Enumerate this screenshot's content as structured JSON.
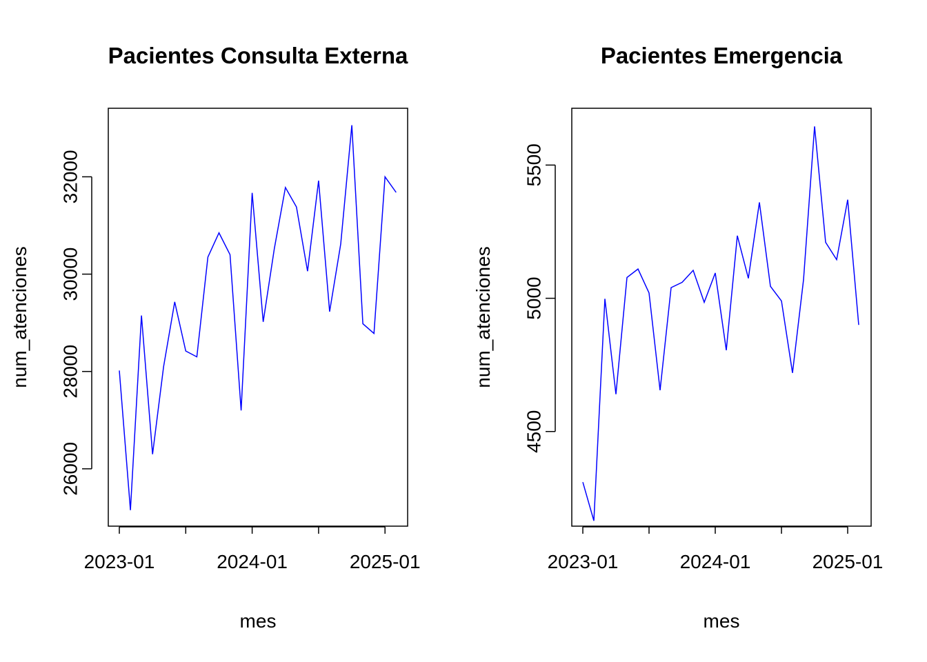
{
  "chart_data": [
    {
      "type": "line",
      "title": "Pacientes Consulta Externa",
      "xlabel": "mes",
      "ylabel": "num_atenciones",
      "line_color": "#0000ff",
      "x_ticks": [
        {
          "index": 0,
          "label": "2023-01"
        },
        {
          "index": 6,
          "label": ""
        },
        {
          "index": 12,
          "label": "2024-01"
        },
        {
          "index": 18,
          "label": ""
        },
        {
          "index": 24,
          "label": "2025-01"
        }
      ],
      "y_ticks": [
        {
          "value": 26000,
          "label": "26000"
        },
        {
          "value": 28000,
          "label": "28000"
        },
        {
          "value": 30000,
          "label": "30000"
        },
        {
          "value": 32000,
          "label": "32000"
        }
      ],
      "ylim": [
        24850,
        33380
      ],
      "months": [
        "2023-01",
        "2023-02",
        "2023-03",
        "2023-04",
        "2023-05",
        "2023-06",
        "2023-07",
        "2023-08",
        "2023-09",
        "2023-10",
        "2023-11",
        "2023-12",
        "2024-01",
        "2024-02",
        "2024-03",
        "2024-04",
        "2024-05",
        "2024-06",
        "2024-07",
        "2024-08",
        "2024-09",
        "2024-10",
        "2024-11",
        "2024-12",
        "2025-01",
        "2025-02"
      ],
      "values": [
        28020,
        25150,
        29150,
        26300,
        28100,
        29430,
        28420,
        28300,
        30350,
        30850,
        30400,
        27200,
        31670,
        29020,
        30520,
        31780,
        31380,
        30060,
        31920,
        29230,
        30620,
        33060,
        28980,
        28780,
        32000,
        31680
      ]
    },
    {
      "type": "line",
      "title": "Pacientes Emergencia",
      "xlabel": "mes",
      "ylabel": "num_atenciones",
      "line_color": "#0000ff",
      "x_ticks": [
        {
          "index": 0,
          "label": "2023-01"
        },
        {
          "index": 6,
          "label": ""
        },
        {
          "index": 12,
          "label": "2024-01"
        },
        {
          "index": 18,
          "label": ""
        },
        {
          "index": 24,
          "label": "2025-01"
        }
      ],
      "y_ticks": [
        {
          "value": 4500,
          "label": "4500"
        },
        {
          "value": 5000,
          "label": "5000"
        },
        {
          "value": 5500,
          "label": "5500"
        }
      ],
      "ylim": [
        4150,
        5708
      ],
      "months": [
        "2023-01",
        "2023-02",
        "2023-03",
        "2023-04",
        "2023-05",
        "2023-06",
        "2023-07",
        "2023-08",
        "2023-09",
        "2023-10",
        "2023-11",
        "2023-12",
        "2024-01",
        "2024-02",
        "2024-03",
        "2024-04",
        "2024-05",
        "2024-06",
        "2024-07",
        "2024-08",
        "2024-09",
        "2024-10",
        "2024-11",
        "2024-12",
        "2025-01",
        "2025-02"
      ],
      "values": [
        4310,
        4165,
        4998,
        4640,
        5078,
        5110,
        5020,
        4655,
        5040,
        5060,
        5105,
        4985,
        5095,
        4805,
        5235,
        5075,
        5360,
        5045,
        4990,
        4720,
        5070,
        5645,
        5210,
        5145,
        5370,
        4900
      ]
    }
  ]
}
